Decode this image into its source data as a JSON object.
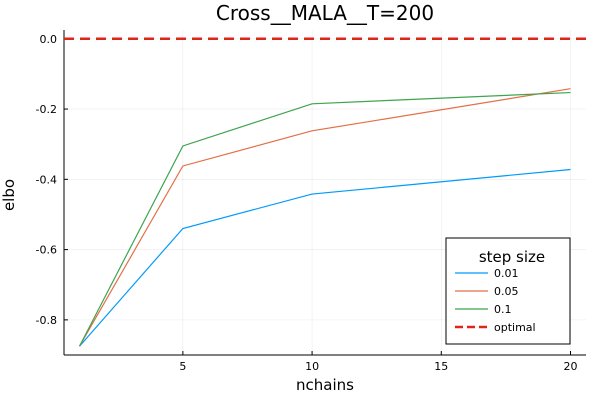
{
  "chart_data": {
    "type": "line",
    "title": "Cross__MALA__T=200",
    "xlabel": "nchains",
    "ylabel": "elbo",
    "x": [
      1,
      5,
      10,
      20
    ],
    "xlim": [
      0.4,
      20.6
    ],
    "ylim": [
      -0.9,
      0.025
    ],
    "xticks": [
      5,
      10,
      15,
      20
    ],
    "yticks": [
      -0.8,
      -0.6,
      -0.4,
      -0.2,
      0.0
    ],
    "xtick_labels": [
      "5",
      "10",
      "15",
      "20"
    ],
    "ytick_labels": [
      "-0.8",
      "-0.6",
      "-0.4",
      "-0.2",
      "0.0"
    ],
    "grid": true,
    "legend": {
      "title": "step size",
      "position": "bottom-right"
    },
    "series": [
      {
        "name": "0.01",
        "color": "#009AFA",
        "values": [
          -0.875,
          -0.54,
          -0.442,
          -0.372
        ]
      },
      {
        "name": "0.05",
        "color": "#E36F47",
        "values": [
          -0.875,
          -0.362,
          -0.262,
          -0.142
        ]
      },
      {
        "name": "0.1",
        "color": "#3EA44E",
        "values": [
          -0.875,
          -0.305,
          -0.185,
          -0.153
        ]
      }
    ],
    "reference_lines": [
      {
        "name": "optimal",
        "y": 0.0,
        "color": "#E0231C",
        "style": "dashed"
      }
    ]
  }
}
